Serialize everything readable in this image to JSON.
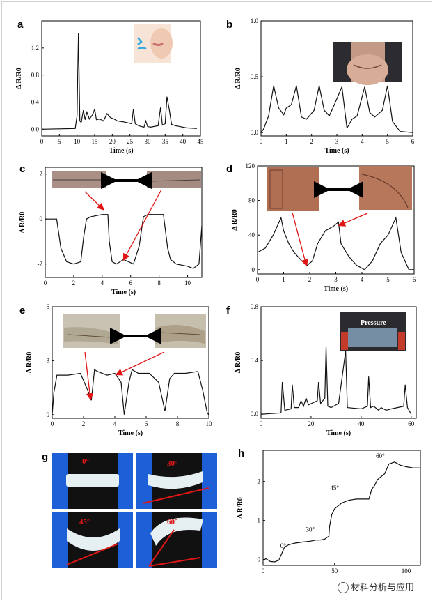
{
  "watermark": "材料分析与应用",
  "chart_data": [
    {
      "id": "a",
      "type": "line",
      "letter": "a",
      "xlabel": "Time (s)",
      "ylabel": "Δ R/R0",
      "xlim": [
        0,
        45
      ],
      "ylim": [
        -0.1,
        1.6
      ],
      "xticks": [
        0,
        5,
        10,
        15,
        20,
        25,
        30,
        35,
        40,
        45
      ],
      "yticks": [
        0.0,
        0.4,
        0.8,
        1.2
      ],
      "ytick_labels": [
        "0.0",
        "0.4",
        "0.8",
        "1.2"
      ],
      "x": [
        0,
        9.5,
        10,
        10.4,
        10.8,
        11.2,
        11.8,
        12.3,
        12.8,
        13.5,
        14.5,
        15,
        15.5,
        16.5,
        17.5,
        18.5,
        19.5,
        20.5,
        21.5,
        23,
        25.5,
        26,
        26.5,
        27.5,
        29,
        29.5,
        30,
        30.8,
        33,
        33.7,
        34.2,
        35,
        35.5,
        36.2,
        36.8,
        38,
        41,
        44
      ],
      "y": [
        0.0,
        0.01,
        0.2,
        1.42,
        0.12,
        0.1,
        0.28,
        0.14,
        0.25,
        0.15,
        0.22,
        0.3,
        0.14,
        0.15,
        0.12,
        0.23,
        0.17,
        0.15,
        0.12,
        0.11,
        0.08,
        0.3,
        0.08,
        0.05,
        0.03,
        0.12,
        0.04,
        0.03,
        0.05,
        0.32,
        0.06,
        0.08,
        0.48,
        0.28,
        0.07,
        0.05,
        0.02,
        0.01
      ]
    },
    {
      "id": "b",
      "type": "line",
      "letter": "b",
      "xlabel": "Time (s)",
      "ylabel": "Δ R/R0",
      "xlim": [
        0,
        6
      ],
      "ylim": [
        -0.03,
        1.0
      ],
      "xticks": [
        0,
        1,
        2,
        3,
        4,
        5,
        6
      ],
      "yticks": [
        0.0,
        0.5,
        1.0
      ],
      "ytick_labels": [
        "0.0",
        "0.5",
        "1.0"
      ],
      "x": [
        0,
        0.1,
        0.3,
        0.5,
        0.7,
        0.9,
        1.0,
        1.2,
        1.4,
        1.6,
        1.8,
        2.1,
        2.3,
        2.5,
        2.7,
        2.9,
        3.2,
        3.4,
        3.6,
        3.8,
        4.1,
        4.3,
        4.5,
        4.8,
        5.0,
        5.2,
        5.5,
        6.0
      ],
      "y": [
        0.0,
        0.03,
        0.15,
        0.42,
        0.22,
        0.16,
        0.22,
        0.25,
        0.42,
        0.14,
        0.12,
        0.2,
        0.42,
        0.2,
        0.15,
        0.25,
        0.41,
        0.04,
        0.12,
        0.15,
        0.41,
        0.18,
        0.14,
        0.2,
        0.42,
        0.1,
        0.01,
        0.0
      ]
    },
    {
      "id": "c",
      "type": "line",
      "letter": "c",
      "xlabel": "Time (s)",
      "ylabel": "Δ R/R0",
      "xlim": [
        0,
        11
      ],
      "ylim": [
        -2.6,
        2.3
      ],
      "xticks": [
        0,
        2,
        4,
        6,
        8,
        10
      ],
      "yticks": [
        -2,
        0,
        2
      ],
      "ytick_labels": [
        "-2",
        "0",
        "2"
      ],
      "x": [
        0,
        0.8,
        1.1,
        1.5,
        2.0,
        2.5,
        2.7,
        2.9,
        3.2,
        3.6,
        4.0,
        4.4,
        4.5,
        4.7,
        5.0,
        5.5,
        6.2,
        6.6,
        6.9,
        7.2,
        7.8,
        8.3,
        8.6,
        8.8,
        9.2,
        10.0,
        10.4,
        10.8,
        11.0
      ],
      "y": [
        0,
        0,
        -1.3,
        -1.9,
        -2.0,
        -1.9,
        -0.8,
        0.0,
        0.1,
        0.15,
        0.2,
        0.2,
        -1.0,
        -1.9,
        -2.0,
        -1.8,
        -2.0,
        -1.2,
        0.1,
        0.2,
        0.2,
        0.2,
        -1.3,
        -1.8,
        -2.0,
        -2.1,
        -2.2,
        -2.0,
        -0.3
      ]
    },
    {
      "id": "d",
      "type": "line",
      "letter": "d",
      "xlabel": "Time (s)",
      "ylabel": "Δ R/R0",
      "xlim": [
        0,
        6
      ],
      "ylim": [
        -5,
        120
      ],
      "xticks": [
        0,
        1,
        2,
        3,
        4,
        5,
        6
      ],
      "yticks": [
        0,
        40,
        80,
        120
      ],
      "ytick_labels": [
        "0",
        "40",
        "80",
        "120"
      ],
      "x": [
        0,
        0.3,
        0.6,
        0.9,
        1.0,
        1.2,
        1.4,
        1.7,
        1.9,
        2.1,
        2.3,
        2.6,
        2.9,
        3.1,
        3.2,
        3.5,
        3.8,
        4.1,
        4.4,
        4.7,
        5.0,
        5.3,
        5.5,
        5.8,
        6.0
      ],
      "y": [
        20,
        25,
        40,
        60,
        45,
        30,
        20,
        10,
        5,
        10,
        30,
        45,
        50,
        55,
        30,
        15,
        5,
        0,
        10,
        30,
        40,
        60,
        20,
        0,
        0
      ]
    },
    {
      "id": "e",
      "type": "line",
      "letter": "e",
      "xlabel": "Time (s)",
      "ylabel": "Δ R/R0",
      "xlim": [
        0,
        10
      ],
      "ylim": [
        -0.2,
        6
      ],
      "xticks": [
        0,
        2,
        4,
        6,
        8,
        10
      ],
      "yticks": [
        0,
        3,
        6
      ],
      "ytick_labels": [
        "0",
        "3",
        "6"
      ],
      "x": [
        0,
        0.1,
        0.3,
        1.0,
        1.8,
        2.2,
        2.5,
        2.7,
        2.9,
        3.5,
        4.0,
        4.4,
        4.6,
        4.9,
        5.1,
        5.5,
        6.2,
        6.8,
        7.2,
        7.5,
        7.8,
        8.5,
        9.3,
        9.6,
        9.9,
        10.0
      ],
      "y": [
        0,
        1.2,
        2.2,
        2.2,
        2.3,
        1.5,
        0.8,
        2.5,
        2.4,
        2.2,
        2.3,
        1.8,
        0.0,
        1.8,
        2.5,
        2.3,
        2.3,
        1.8,
        0.2,
        2.0,
        2.3,
        2.3,
        2.4,
        1.4,
        0.1,
        0.0
      ]
    },
    {
      "id": "f",
      "type": "line",
      "letter": "f",
      "xlabel": "Time (s)",
      "ylabel": "Δ R/R0",
      "xlim": [
        0,
        62
      ],
      "ylim": [
        -0.03,
        0.8
      ],
      "xticks": [
        0,
        20,
        40,
        60
      ],
      "yticks": [
        0.0,
        0.4,
        0.8
      ],
      "ytick_labels": [
        "0.0",
        "0.4",
        "0.8"
      ],
      "x": [
        0,
        8,
        8.5,
        9.5,
        12,
        12.5,
        13.3,
        15,
        16,
        17,
        18,
        19,
        22.5,
        23,
        23.8,
        25.5,
        26,
        26.7,
        28,
        31,
        33.8,
        34.5,
        40,
        42.5,
        43,
        43.8,
        45,
        47,
        48,
        50,
        52,
        57,
        57.6,
        58.5,
        60
      ],
      "y": [
        0,
        0.01,
        0.24,
        0.03,
        0.04,
        0.22,
        0.05,
        0.05,
        0.1,
        0.06,
        0.12,
        0.07,
        0.1,
        0.24,
        0.08,
        0.12,
        0.5,
        0.06,
        0.05,
        0.08,
        0.47,
        0.05,
        0.04,
        0.06,
        0.28,
        0.05,
        0.06,
        0.03,
        0.05,
        0.03,
        0.04,
        0.06,
        0.22,
        0.05,
        0.0
      ]
    },
    {
      "id": "h",
      "type": "line",
      "letter": "h",
      "xlabel": "",
      "ylabel": "Δ R/R0",
      "xlim": [
        0,
        110
      ],
      "ylim": [
        -0.15,
        2.8
      ],
      "xticks": [
        0,
        50,
        100
      ],
      "yticks": [
        0,
        1,
        2
      ],
      "ytick_labels": [
        "0",
        "1",
        "2"
      ],
      "annotations": [
        "0°",
        "30°",
        "45°",
        "60°"
      ],
      "x": [
        0,
        2,
        5,
        8,
        11,
        13,
        15,
        18,
        22,
        28,
        33,
        37,
        40,
        43,
        46,
        46.5,
        48,
        50,
        55,
        60,
        65,
        70,
        74,
        76,
        78,
        80,
        85,
        88,
        92,
        96,
        100,
        105,
        110
      ],
      "y": [
        -0.02,
        0.02,
        -0.05,
        -0.06,
        -0.02,
        0.15,
        0.32,
        0.38,
        0.42,
        0.45,
        0.47,
        0.5,
        0.5,
        0.52,
        0.6,
        0.85,
        1.15,
        1.3,
        1.45,
        1.52,
        1.55,
        1.55,
        1.55,
        1.8,
        1.9,
        2.05,
        2.2,
        2.45,
        2.5,
        2.42,
        2.38,
        2.35,
        2.35
      ]
    }
  ],
  "insets": {
    "b": "neck",
    "g": [
      "0°",
      "30°",
      "45°",
      "60°"
    ],
    "f_label": "Pressure"
  },
  "colors": {
    "line": "#111111",
    "arrow": "#e01515",
    "photo_skin": "#b57b5e",
    "glove": "#1d5fd6",
    "gel": "#e6f0f3"
  }
}
